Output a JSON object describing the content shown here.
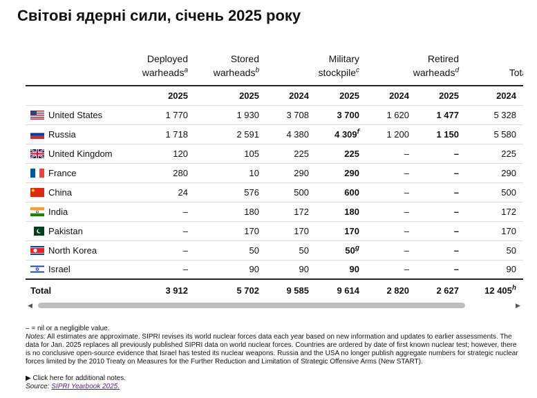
{
  "header": {
    "title": "Світові ядерні сили, січень 2025 року"
  },
  "table": {
    "columns": [
      {
        "label": "Deployed warheads",
        "note": "a"
      },
      {
        "label": "Stored warheads",
        "note": "b"
      },
      {
        "label": "Military stockpile",
        "note": "c"
      },
      {
        "label": "Retired warheads",
        "note": "d"
      },
      {
        "label": "Total inventory"
      }
    ],
    "years": [
      "2025",
      "2025",
      "2024",
      "2025",
      "2024",
      "2025",
      "2024"
    ],
    "rows": [
      {
        "country": "United States",
        "cells": [
          "1 770",
          "1 930",
          "3 708",
          "3 700",
          "1 620",
          "1 477",
          "5 328"
        ]
      },
      {
        "country": "Russia",
        "cells": [
          "1 718",
          "2 591",
          "4 380",
          {
            "text": "4 309",
            "note": "f"
          },
          "1 200",
          "1 150",
          "5 580"
        ]
      },
      {
        "country": "United Kingdom",
        "cells": [
          "120",
          "105",
          "225",
          "225",
          "–",
          "–",
          "225"
        ]
      },
      {
        "country": "France",
        "cells": [
          "280",
          "10",
          "290",
          "290",
          "–",
          "–",
          "290"
        ]
      },
      {
        "country": "China",
        "cells": [
          "24",
          "576",
          "500",
          "600",
          "–",
          "–",
          "500"
        ]
      },
      {
        "country": "India",
        "cells": [
          "–",
          "180",
          "172",
          "180",
          "–",
          "–",
          "172"
        ]
      },
      {
        "country": "Pakistan",
        "cells": [
          "–",
          "170",
          "170",
          "170",
          "–",
          "–",
          "170"
        ]
      },
      {
        "country": "North Korea",
        "cells": [
          "–",
          "50",
          "50",
          {
            "text": "50",
            "note": "g"
          },
          "–",
          "–",
          "50"
        ]
      },
      {
        "country": "Israel",
        "cells": [
          "–",
          "90",
          "90",
          "90",
          "–",
          "–",
          "90"
        ]
      }
    ],
    "total": {
      "label": "Total",
      "cells": [
        "3 912",
        "5 702",
        "9 585",
        "9 614",
        "2 820",
        "2 627",
        {
          "text": "12 405",
          "note": "h"
        }
      ]
    }
  },
  "footer": {
    "legend": "– = nil or a negligible value.",
    "notes_label": "Notes:",
    "notes": "All estimates are approximate. SIPRI revises its world nuclear forces data each year based on new information and updates to earlier assessments. The data for Jan. 2025 replaces all previously published SIPRI data on world nuclear forces. Countries are ordered by date of first known nuclear test; however, there is no conclusive open-source evidence that Israel has tested its nuclear weapons. Russia and the USA no longer publish aggregate numbers for strategic nuclear forces limited by the 2010 Treaty on Measures for the Further Reduction and Limitation of Strategic Offensive Arms (New START).",
    "more": "Click here for additional notes.",
    "source_label": "Source:",
    "source": "SIPRI Yearbook 2025."
  }
}
